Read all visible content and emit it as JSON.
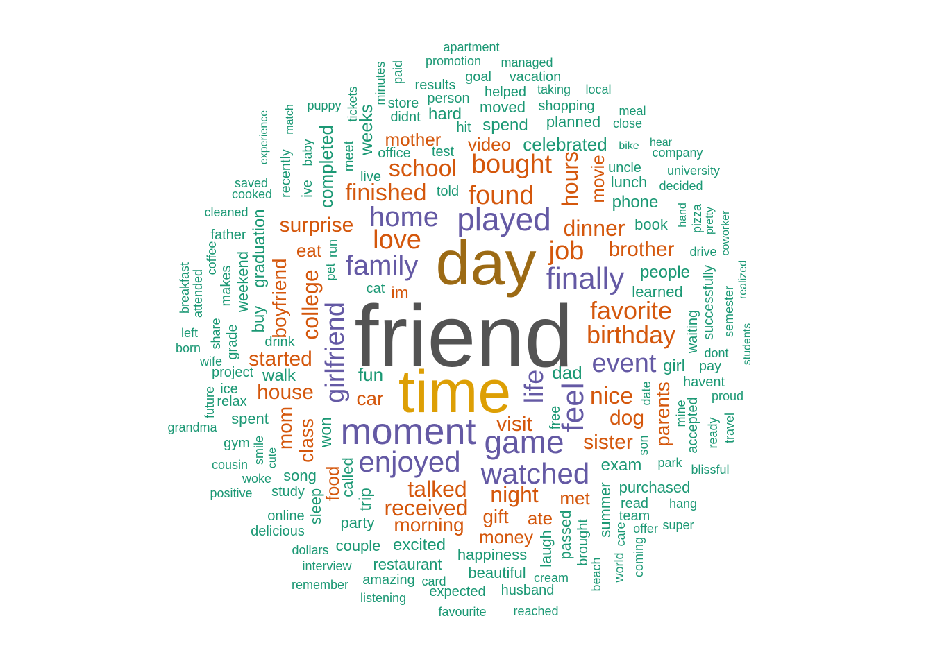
{
  "palette": {
    "c1": "#535353",
    "c2": "#dd9f05",
    "c3": "#9c6a14",
    "c4": "#6459a4",
    "c5": "#d4570c",
    "c6": "#1b9874"
  },
  "words": {
    "friend": "friend",
    "time": "time",
    "day": "day",
    "moment": "moment",
    "played": "played",
    "home": "home",
    "family": "family",
    "game": "game",
    "enjoyed": "enjoyed",
    "watched": "watched",
    "finally": "finally",
    "event": "event",
    "girlfriend": "girlfriend",
    "life": "life",
    "feel": "feel",
    "bought": "bought",
    "found": "found",
    "job": "job",
    "love": "love",
    "school": "school",
    "finished": "finished",
    "dinner": "dinner",
    "hours": "hours",
    "favorite": "favorite",
    "birthday": "birthday",
    "brother": "brother",
    "nice": "nice",
    "dog": "dog",
    "sister": "sister",
    "surprise": "surprise",
    "mother": "mother",
    "video": "video",
    "college": "college",
    "boyfriend": "boyfriend",
    "started": "started",
    "house": "house",
    "car": "car",
    "visit": "visit",
    "received": "received",
    "talked": "talked",
    "night": "night",
    "morning": "morning",
    "gift": "gift",
    "money": "money",
    "ate": "ate",
    "met": "met",
    "parents": "parents",
    "movie": "movie",
    "class": "class",
    "mom": "mom",
    "food": "food",
    "eat": "eat",
    "im": "im",
    "celebrated": "celebrated",
    "spend": "spend",
    "moved": "moved",
    "hard": "hard",
    "shopping": "shopping",
    "planned": "planned",
    "people": "people",
    "phone": "phone",
    "lunch": "lunch",
    "uncle": "uncle",
    "book": "book",
    "learned": "learned",
    "completed": "completed",
    "weeks": "weeks",
    "graduation": "graduation",
    "buy": "buy",
    "weekend": "weekend",
    "walk": "walk",
    "fun": "fun",
    "dad": "dad",
    "spent": "spent",
    "won": "won",
    "trip": "trip",
    "called": "called",
    "sleep": "sleep",
    "song": "song",
    "party": "party",
    "couple": "couple",
    "excited": "excited",
    "restaurant": "restaurant",
    "happiness": "happiness",
    "beautiful": "beautiful",
    "husband": "husband",
    "expected": "expected",
    "amazing": "amazing",
    "exam": "exam",
    "purchased": "purchased",
    "read": "read",
    "team": "team",
    "summer": "summer",
    "passed": "passed",
    "laugh": "laugh",
    "brought": "brought",
    "girl": "girl",
    "havent": "havent",
    "pay": "pay",
    "dont": "dont",
    "waiting": "waiting",
    "successfully": "successfully",
    "accepted": "accepted",
    "free": "free",
    "date": "date",
    "son": "son",
    "park": "park",
    "apartment": "apartment",
    "promotion": "promotion",
    "managed": "managed",
    "goal": "goal",
    "vacation": "vacation",
    "results": "results",
    "helped": "helped",
    "taking": "taking",
    "local": "local",
    "person": "person",
    "store": "store",
    "didnt": "didnt",
    "hit": "hit",
    "meal": "meal",
    "close": "close",
    "bike": "bike",
    "hear": "hear",
    "company": "company",
    "university": "university",
    "decided": "decided",
    "office": "office",
    "test": "test",
    "told": "told",
    "live": "live",
    "meet": "meet",
    "tickets": "tickets",
    "minutes": "minutes",
    "paid": "paid",
    "puppy": "puppy",
    "match": "match",
    "experience": "experience",
    "baby": "baby",
    "ive": "ive",
    "recently": "recently",
    "saved": "saved",
    "cooked": "cooked",
    "cleaned": "cleaned",
    "father": "father",
    "coffee": "coffee",
    "makes": "makes",
    "breakfast": "breakfast",
    "attended": "attended",
    "share": "share",
    "left": "left",
    "born": "born",
    "wife": "wife",
    "grade": "grade",
    "project": "project",
    "drink": "drink",
    "ice": "ice",
    "relax": "relax",
    "future": "future",
    "grandma": "grandma",
    "gym": "gym",
    "smile": "smile",
    "cute": "cute",
    "cousin": "cousin",
    "woke": "woke",
    "positive": "positive",
    "study": "study",
    "online": "online",
    "delicious": "delicious",
    "dollars": "dollars",
    "interview": "interview",
    "remember": "remember",
    "listening": "listening",
    "card": "card",
    "favourite": "favourite",
    "reached": "reached",
    "cream": "cream",
    "beach": "beach",
    "world": "world",
    "care": "care",
    "coming": "coming",
    "offer": "offer",
    "super": "super",
    "hang": "hang",
    "blissful": "blissful",
    "mine": "mine",
    "ready": "ready",
    "travel": "travel",
    "proud": "proud",
    "students": "students",
    "semester": "semester",
    "realized": "realized",
    "coworker": "coworker",
    "pretty": "pretty",
    "pizza": "pizza",
    "hand": "hand",
    "drive": "drive",
    "pet": "pet",
    "run": "run",
    "cat": "cat"
  }
}
